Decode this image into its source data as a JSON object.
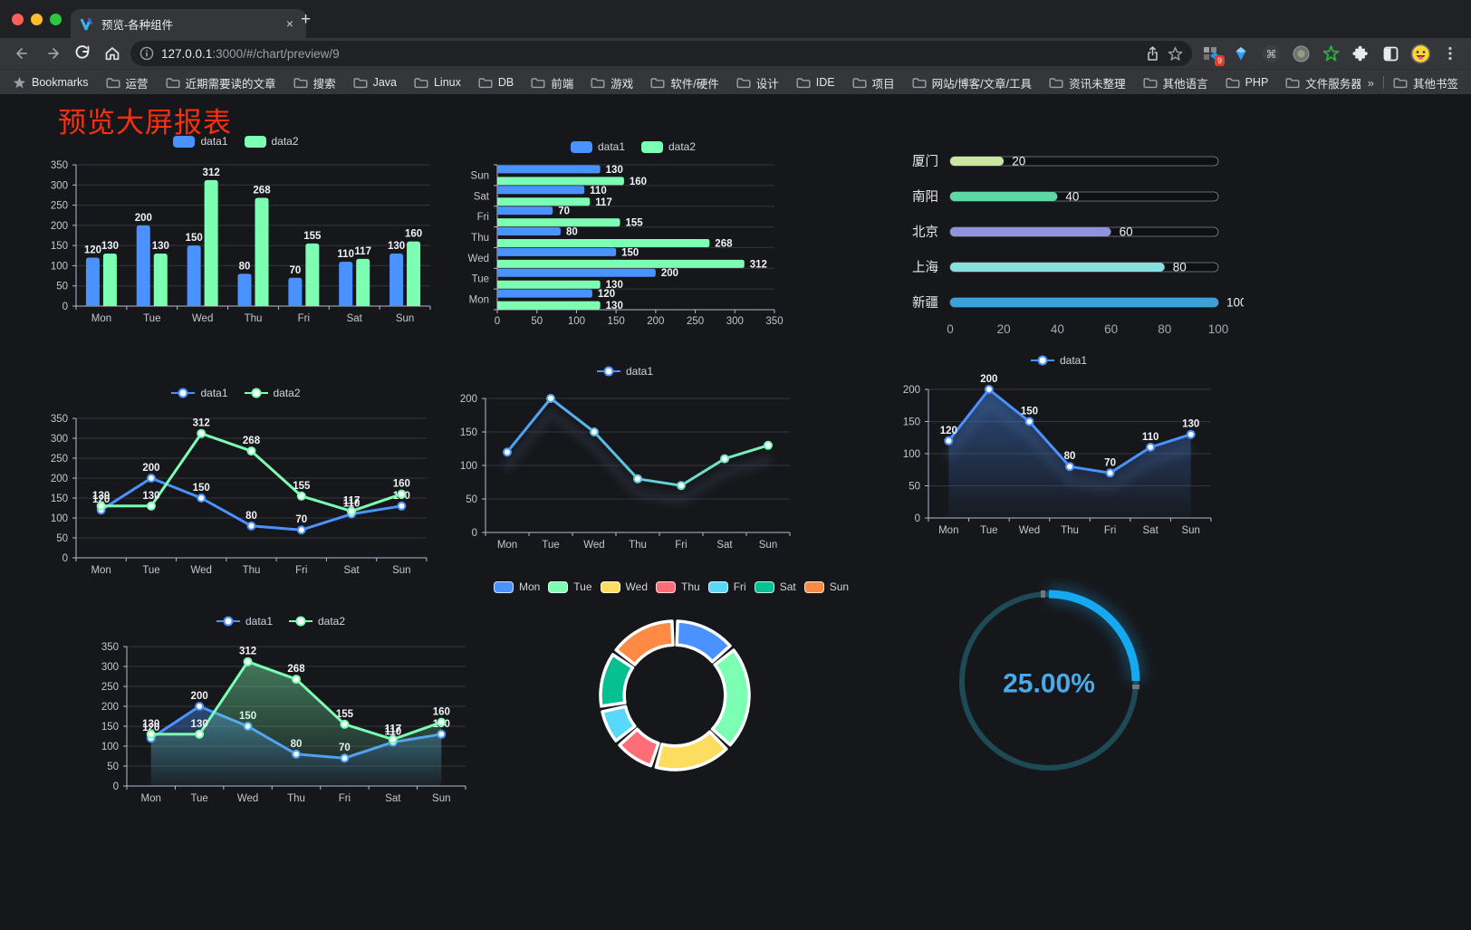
{
  "browser": {
    "tab": {
      "title": "预览-各种组件",
      "close_label": "×",
      "new_tab_label": "+"
    },
    "nav": {
      "url_host": "127.0.0.1",
      "url_rest": ":3000/#/chart/preview/9"
    },
    "extensions_badge": "9",
    "bookmarks": {
      "label": "Bookmarks",
      "folders": [
        "运营",
        "近期需要读的文章",
        "搜索",
        "Java",
        "Linux",
        "DB",
        "前端",
        "游戏",
        "软件/硬件",
        "设计",
        "IDE",
        "项目",
        "网站/博客/文章/工具",
        "资讯未整理",
        "其他语言",
        "PHP",
        "文件服务器"
      ],
      "overflow": "»",
      "other_label": "其他书签"
    }
  },
  "page": {
    "title": "预览大屏报表",
    "title_color": "#f8300e"
  },
  "colors": {
    "blue": "#4992ff",
    "green": "#7cffb2",
    "gauge_blue": "#16a8f0",
    "axis_text": "#c6c6d0",
    "grid": "#34353e"
  },
  "chart_data": [
    {
      "id": "bar-grouped",
      "type": "bar",
      "categories": [
        "Mon",
        "Tue",
        "Wed",
        "Thu",
        "Fri",
        "Sat",
        "Sun"
      ],
      "series": [
        {
          "name": "data1",
          "color": "#4992ff",
          "values": [
            120,
            200,
            150,
            80,
            70,
            110,
            130
          ]
        },
        {
          "name": "data2",
          "color": "#7cffb2",
          "values": [
            130,
            130,
            312,
            268,
            155,
            117,
            160
          ]
        }
      ],
      "ylim": [
        0,
        350
      ],
      "ytick": 50,
      "value_labels": true,
      "legend": "top",
      "grid": true
    },
    {
      "id": "bar-horizontal",
      "type": "hbar",
      "categories": [
        "Mon",
        "Tue",
        "Wed",
        "Thu",
        "Fri",
        "Sat",
        "Sun"
      ],
      "series": [
        {
          "name": "data1",
          "color": "#4992ff",
          "values": [
            120,
            200,
            150,
            80,
            70,
            110,
            130
          ]
        },
        {
          "name": "data2",
          "color": "#7cffb2",
          "values": [
            130,
            130,
            312,
            268,
            155,
            117,
            160
          ]
        }
      ],
      "xlim": [
        0,
        350
      ],
      "xtick": 50,
      "value_labels": true,
      "legend": "top",
      "grid": true
    },
    {
      "id": "city-progress",
      "type": "progress-pills",
      "xlim": [
        0,
        100
      ],
      "xticks": [
        0,
        20,
        40,
        60,
        80,
        100
      ],
      "rows": [
        {
          "label": "厦门",
          "value": 20,
          "color": "#c9e79e"
        },
        {
          "label": "南阳",
          "value": 40,
          "color": "#5ed8a5"
        },
        {
          "label": "北京",
          "value": 60,
          "color": "#9093dc"
        },
        {
          "label": "上海",
          "value": 80,
          "color": "#86e1de"
        },
        {
          "label": "新疆",
          "value": 100,
          "color": "#3aa1dc"
        }
      ]
    },
    {
      "id": "line-two-series",
      "type": "line",
      "categories": [
        "Mon",
        "Tue",
        "Wed",
        "Thu",
        "Fri",
        "Sat",
        "Sun"
      ],
      "series": [
        {
          "name": "data1",
          "color": "#4992ff",
          "values": [
            120,
            200,
            150,
            80,
            70,
            110,
            130
          ]
        },
        {
          "name": "data2",
          "color": "#7cffb2",
          "values": [
            130,
            130,
            312,
            268,
            155,
            117,
            160
          ]
        }
      ],
      "ylim": [
        0,
        350
      ],
      "ytick": 50,
      "value_labels": true,
      "legend": "top",
      "grid": true
    },
    {
      "id": "line-gradient",
      "type": "line",
      "categories": [
        "Mon",
        "Tue",
        "Wed",
        "Thu",
        "Fri",
        "Sat",
        "Sun"
      ],
      "series": [
        {
          "name": "data1",
          "color": "#4992ff",
          "gradient": [
            "#4992ff",
            "#7cffb2"
          ],
          "values": [
            120,
            200,
            150,
            80,
            70,
            110,
            130
          ],
          "shadow": true
        }
      ],
      "ylim": [
        0,
        200
      ],
      "ytick": 50,
      "value_labels": false,
      "legend": "top",
      "grid": true
    },
    {
      "id": "line-area",
      "type": "line",
      "categories": [
        "Mon",
        "Tue",
        "Wed",
        "Thu",
        "Fri",
        "Sat",
        "Sun"
      ],
      "series": [
        {
          "name": "data1",
          "color": "#4992ff",
          "area": true,
          "values": [
            120,
            200,
            150,
            80,
            70,
            110,
            130
          ],
          "shadow": true
        }
      ],
      "ylim": [
        0,
        200
      ],
      "ytick": 50,
      "value_labels": true,
      "legend": "top",
      "grid": true
    },
    {
      "id": "area-two-series",
      "type": "line",
      "categories": [
        "Mon",
        "Tue",
        "Wed",
        "Thu",
        "Fri",
        "Sat",
        "Sun"
      ],
      "series": [
        {
          "name": "data1",
          "color": "#4992ff",
          "area": true,
          "values": [
            120,
            200,
            150,
            80,
            70,
            110,
            130
          ]
        },
        {
          "name": "data2",
          "color": "#7cffb2",
          "area": true,
          "values": [
            130,
            130,
            312,
            268,
            155,
            117,
            160
          ]
        }
      ],
      "ylim": [
        0,
        350
      ],
      "ytick": 50,
      "value_labels": true,
      "legend": "top",
      "grid": true
    },
    {
      "id": "donut",
      "type": "donut",
      "legend": "top",
      "items": [
        {
          "label": "Mon",
          "value": 120,
          "color": "#4992ff"
        },
        {
          "label": "Tue",
          "value": 200,
          "color": "#7cffb2"
        },
        {
          "label": "Wed",
          "value": 150,
          "color": "#fddd60"
        },
        {
          "label": "Thu",
          "value": 80,
          "color": "#ff6e76"
        },
        {
          "label": "Fri",
          "value": 70,
          "color": "#58d9f9"
        },
        {
          "label": "Sat",
          "value": 110,
          "color": "#05c091"
        },
        {
          "label": "Sun",
          "value": 130,
          "color": "#ff8a45"
        }
      ],
      "start_angle": "top",
      "direction": "clockwise",
      "inner_radius_ratio": 0.68
    },
    {
      "id": "gauge",
      "type": "gauge",
      "value": 25,
      "display": "25.00%",
      "color": "#16a8f0",
      "track_color": "#1d4a55",
      "text_color": "#4aa9e9"
    }
  ]
}
